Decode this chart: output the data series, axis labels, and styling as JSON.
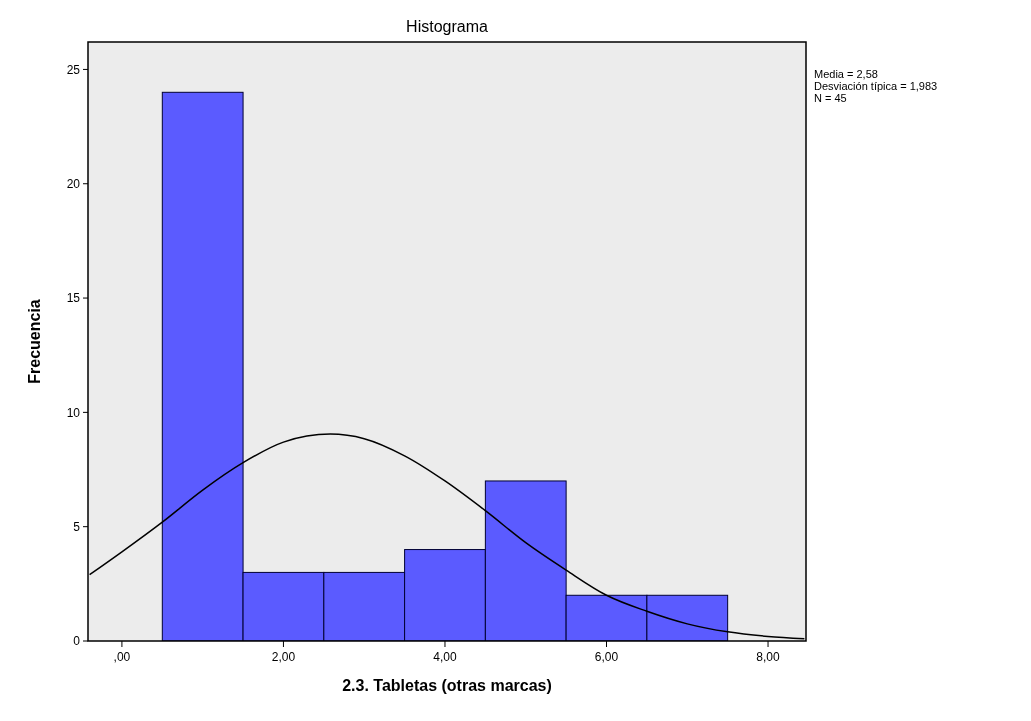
{
  "chart_data": {
    "type": "histogram",
    "title": "Histograma",
    "xlabel": "2.3. Tabletas (otras marcas)",
    "ylabel": "Frecuencia",
    "bins": [
      0.5,
      1.5,
      2.5,
      3.5,
      4.5,
      5.5,
      6.5,
      7.5
    ],
    "values": [
      24,
      3,
      3,
      4,
      7,
      2,
      2
    ],
    "color": "#5b5bff",
    "series": [
      {
        "type": "line",
        "color": "#000000",
        "x": [
          -0.4,
          0,
          0.5,
          1,
          1.5,
          2,
          2.58,
          3,
          3.5,
          4,
          4.5,
          5,
          5.5,
          6,
          6.5,
          7,
          7.5,
          8,
          8.45
        ],
        "values": [
          2.9,
          3.9,
          5.2,
          6.6,
          7.8,
          8.7,
          9.05,
          8.85,
          8.1,
          7.0,
          5.7,
          4.3,
          3.1,
          2.0,
          1.3,
          0.75,
          0.4,
          0.2,
          0.1
        ]
      }
    ],
    "xlim": [
      -0.42,
      8.47
    ],
    "ylim": [
      0,
      26.2
    ],
    "xticks": [
      {
        "value": 0,
        "label": ",00"
      },
      {
        "value": 2,
        "label": "2,00"
      },
      {
        "value": 4,
        "label": "4,00"
      },
      {
        "value": 6,
        "label": "6,00"
      },
      {
        "value": 8,
        "label": "8,00"
      }
    ],
    "yticks": [
      0,
      5,
      10,
      15,
      20,
      25
    ],
    "annotations": [
      "Media = 2,58",
      "Desviación típica = 1,983",
      "N = 45"
    ],
    "grid": false
  }
}
